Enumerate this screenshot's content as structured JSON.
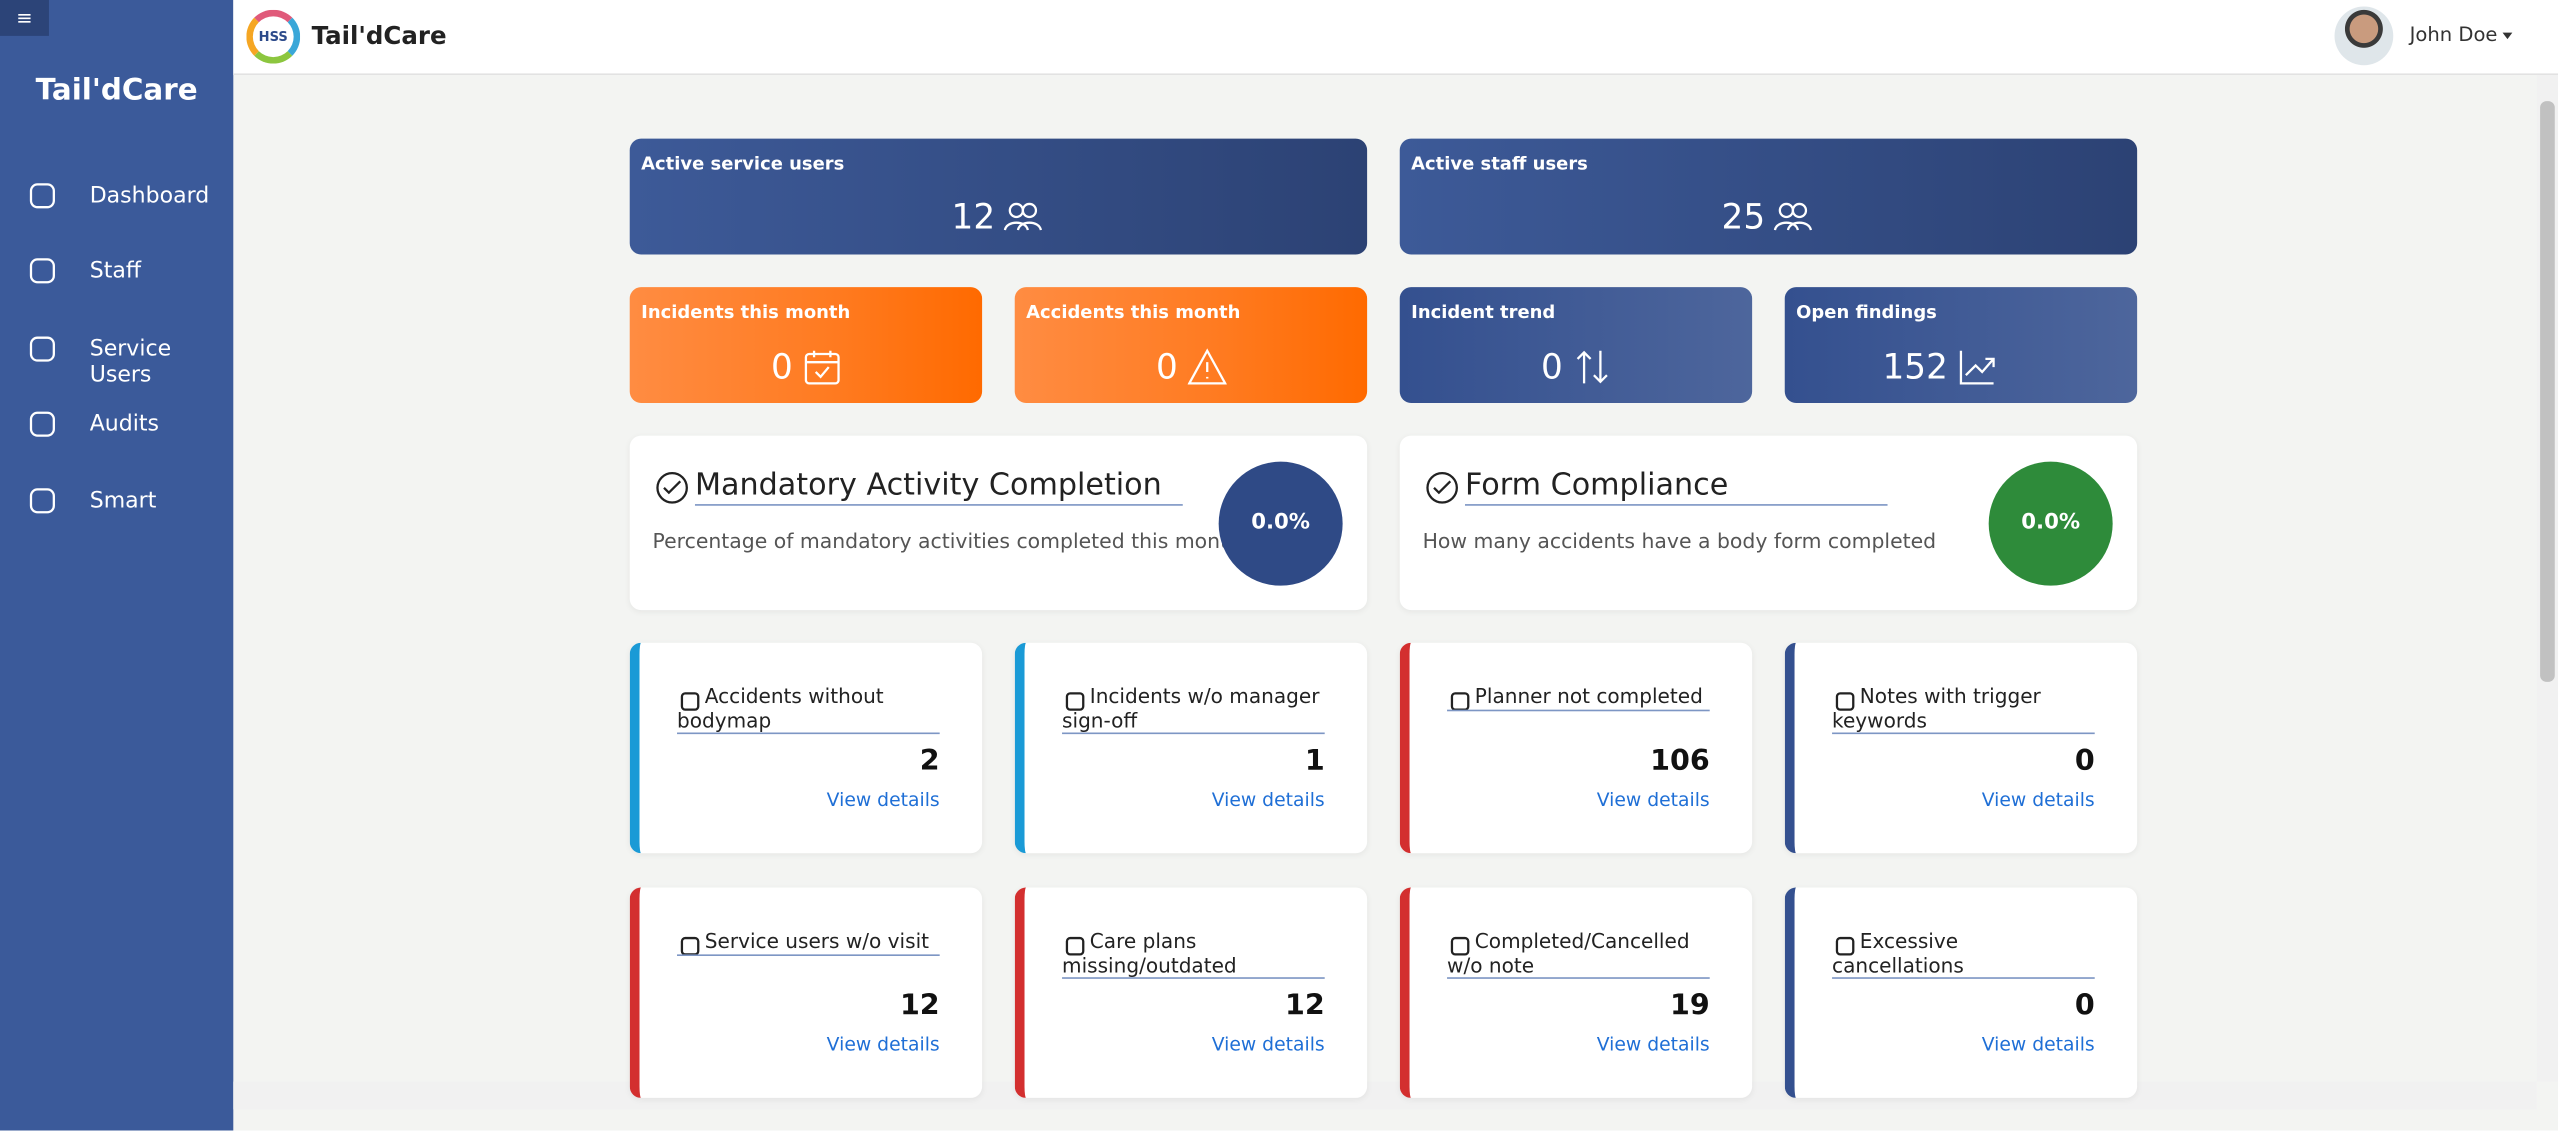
{
  "sidebar": {
    "brand": "Tail'dCare",
    "nav": [
      "Dashboard",
      "Staff",
      "Service Users",
      "Audits",
      "Smart"
    ]
  },
  "header": {
    "logo_text": "HSS",
    "brand": "Tail'dCare",
    "user": "John Doe"
  },
  "stats": [
    {
      "label": "Active service users",
      "value": 12
    },
    {
      "label": "Active staff users",
      "value": 25
    }
  ],
  "kpis": [
    {
      "label": "Incidents this month",
      "value": 0,
      "color": "#ff7a1f"
    },
    {
      "label": "Accidents this month",
      "value": 0,
      "color": "#ff7a1f"
    },
    {
      "label": "Incident trend",
      "value": 0,
      "color": "#34508f"
    },
    {
      "label": "Open findings",
      "value": 152,
      "color": "#34508f"
    }
  ],
  "compliance": [
    {
      "title": "Mandatory Activity Completion",
      "description": "Percentage of mandatory activities completed this month",
      "value": "0.0%",
      "color": "#2f4a86"
    },
    {
      "title": "Form Compliance",
      "description": "How many accidents have a body form completed",
      "value": "0.0%",
      "color": "#2e8b3a"
    }
  ],
  "alerts": [
    {
      "title": "Accidents without bodymap",
      "value": 2,
      "link": "View details",
      "accent": "#1a9ad6"
    },
    {
      "title": "Incidents w/o manager sign-off",
      "value": 1,
      "link": "View details",
      "accent": "#1a9ad6"
    },
    {
      "title": "Planner not completed",
      "value": 106,
      "link": "View details",
      "accent": "#d32f2f"
    },
    {
      "title": "Notes with trigger keywords",
      "value": 0,
      "link": "View details",
      "accent": "#34508f"
    },
    {
      "title": "Service users w/o visit",
      "value": 12,
      "link": "View details",
      "accent": "#d32f2f"
    },
    {
      "title": "Care plans missing/outdated",
      "value": 12,
      "link": "View details",
      "accent": "#d32f2f"
    },
    {
      "title": "Completed/Cancelled w/o note",
      "value": 19,
      "link": "View details",
      "accent": "#d32f2f"
    },
    {
      "title": "Excessive cancellations",
      "value": 0,
      "link": "View details",
      "accent": "#34508f"
    }
  ]
}
